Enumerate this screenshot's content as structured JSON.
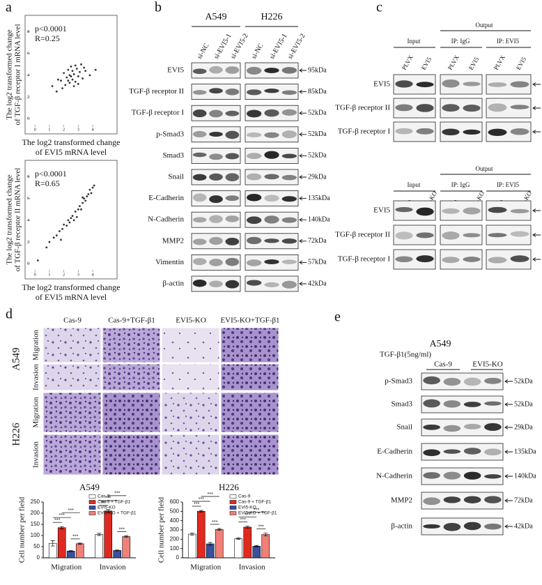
{
  "figure": {
    "panel_labels": [
      "a",
      "b",
      "c",
      "d",
      "e"
    ],
    "b": {
      "cell_lines": [
        "A549",
        "H226"
      ],
      "lanes": [
        "si-NC",
        "si-EVI5-1",
        "si-EVI5-2",
        "si-NC",
        "si-EVI5-1",
        "si-EVI5-2"
      ],
      "rows": [
        {
          "label": "EVI5",
          "size": "95kDa"
        },
        {
          "label": "TGF-β receptor II",
          "size": "85kDa"
        },
        {
          "label": "TGF-β receptor I",
          "size": "52kDa"
        },
        {
          "label": "p-Smad3",
          "size": "52kDa"
        },
        {
          "label": "Smad3",
          "size": "52kDa"
        },
        {
          "label": "Snail",
          "size": "29kDa"
        },
        {
          "label": "E-Cadherin",
          "size": "135kDa"
        },
        {
          "label": "N-Cadherin",
          "size": "140kDa"
        },
        {
          "label": "MMP2",
          "size": "72kDa"
        },
        {
          "label": "Vimentin",
          "size": "57kDa"
        },
        {
          "label": "β-actin",
          "size": "42kDa"
        }
      ]
    },
    "c": {
      "top": {
        "output": "Output",
        "groups": [
          "Input",
          "IP: IgG",
          "IP: EVI5"
        ],
        "lanes": [
          "PLVX",
          "EVI5",
          "PLVX",
          "EVI5",
          "PLVX",
          "EVI5"
        ],
        "rows": [
          "EVI5",
          "TGF-β receptor II",
          "TGF-β receptor I"
        ]
      },
      "bottom": {
        "output": "Output",
        "groups": [
          "Input",
          "IP: IgG",
          "IP: EVI5"
        ],
        "lanes": [
          "Cas-9",
          "EVI5-KO",
          "Cas-9",
          "EVI5-KO",
          "Cas-9",
          "EVI5-KO"
        ],
        "rows": [
          "EVI5",
          "TGF-β receptor II",
          "TGF-β receptor I"
        ]
      }
    },
    "d": {
      "conditions": [
        "Cas-9",
        "Cas-9+TGF-β1",
        "EVI5-KO",
        "EVI5-KO+TGF-β1"
      ],
      "cell_lines": [
        "A549",
        "H226"
      ],
      "assays": [
        "Migration",
        "Invasion",
        "Migration",
        "Invasion"
      ]
    },
    "e": {
      "cell_line": "A549",
      "treatment": "TGF-β1(5ng/ml)",
      "groups": [
        "Cas-9",
        "EVI5-KO"
      ],
      "signs": [
        "-",
        "+",
        "-",
        "+"
      ],
      "rows": [
        {
          "label": "p-Smad3",
          "size": "52kDa"
        },
        {
          "label": "Smad3",
          "size": "52kDa"
        },
        {
          "label": "Snail",
          "size": "29kDa"
        },
        {
          "label": "E-Cadherin",
          "size": "135kDa"
        },
        {
          "label": "N-Cadherin",
          "size": "140kDa"
        },
        {
          "label": "MMP2",
          "size": "72kDa"
        },
        {
          "label": "β-actin",
          "size": "42kDa"
        }
      ]
    }
  },
  "chart_data": [
    {
      "type": "scatter",
      "annotations": [
        "p<0.0001",
        "R=0.25"
      ],
      "x_label": [
        "The log2 transformed change",
        "of EVI5 mRNA level"
      ],
      "y_label": [
        "The log2 transformed change",
        "of TGF-β receptor I mRNA level"
      ],
      "xlim": [
        -0.3,
        5.3
      ],
      "ylim": [
        -0.5,
        9
      ],
      "xticks": [
        0,
        1,
        2,
        3,
        4
      ],
      "yticks": [
        0,
        2,
        4,
        6,
        8
      ],
      "color": "#333333",
      "x": [
        1.2,
        1.5,
        1.8,
        2.0,
        2.1,
        2.2,
        2.3,
        2.4,
        2.5,
        2.5,
        2.6,
        2.7,
        2.8,
        2.9,
        3.0,
        3.1,
        3.2,
        3.3,
        3.5,
        3.8,
        1.9,
        2.3,
        2.6,
        2.8,
        3.0,
        2.4,
        2.7,
        3.4,
        1.6,
        4.2
      ],
      "y": [
        3.0,
        2.5,
        3.5,
        4.2,
        3.1,
        3.8,
        4.5,
        3.3,
        3.9,
        4.8,
        3.6,
        4.1,
        3.4,
        4.6,
        3.9,
        4.3,
        5.0,
        3.7,
        4.4,
        4.0,
        2.8,
        3.5,
        4.4,
        4.9,
        3.2,
        4.0,
        3.0,
        4.7,
        3.6,
        4.5
      ]
    },
    {
      "type": "scatter",
      "annotations": [
        "p<0.0001",
        "R=0.65"
      ],
      "x_label": [
        "The log2 transformed change",
        "of EVI5 mRNA level"
      ],
      "y_label": [
        "The log2 transformed change",
        "of TGF-β receptor II mRNA level"
      ],
      "xlim": [
        -0.3,
        5.3
      ],
      "ylim": [
        -0.5,
        9
      ],
      "xticks": [
        0,
        1,
        2,
        3,
        4
      ],
      "yticks": [
        0,
        2,
        4,
        6,
        8
      ],
      "color": "#333333",
      "x": [
        0.8,
        1.0,
        1.3,
        1.5,
        1.7,
        1.9,
        2.0,
        2.2,
        2.3,
        2.5,
        2.6,
        2.7,
        2.8,
        3.0,
        3.1,
        3.2,
        3.3,
        3.4,
        3.5,
        3.6,
        3.7,
        3.8,
        3.9,
        4.0,
        4.1,
        1.8,
        2.4,
        2.9,
        3.3,
        0.2
      ],
      "y": [
        1.5,
        2.0,
        2.4,
        2.6,
        3.0,
        3.2,
        3.6,
        3.5,
        4.0,
        4.2,
        4.4,
        4.0,
        4.8,
        5.0,
        5.3,
        5.0,
        5.6,
        6.0,
        5.8,
        6.2,
        6.4,
        6.8,
        6.5,
        7.0,
        7.2,
        2.2,
        3.8,
        4.3,
        6.1,
        0.3
      ]
    },
    {
      "type": "bar",
      "title": "A549",
      "y_label": "Cell number per field",
      "categories": [
        "Migration",
        "Invasion"
      ],
      "ylim": [
        0,
        250
      ],
      "yticks": [
        0,
        50,
        100,
        150,
        200,
        250
      ],
      "series": [
        {
          "name": "Cas-9",
          "color": "#ffffff",
          "values": [
            65,
            105
          ],
          "errors": [
            12,
            5
          ]
        },
        {
          "name": "Cas-9 + TGF-β1",
          "color": "#e0291f",
          "values": [
            135,
            210
          ],
          "errors": [
            5,
            6
          ]
        },
        {
          "name": "EVI5-KO",
          "color": "#3a4f9e",
          "values": [
            30,
            33
          ],
          "errors": [
            2,
            2
          ]
        },
        {
          "name": "EVI5-KO + TGF-β1",
          "color": "#f08078",
          "values": [
            63,
            95
          ],
          "errors": [
            3,
            3
          ]
        }
      ],
      "significance": [
        "***",
        "***",
        "***",
        "***",
        "***",
        "***",
        "***",
        "***"
      ]
    },
    {
      "type": "bar",
      "title": "H226",
      "y_label": "Cell number per field",
      "categories": [
        "Migration",
        "Invasion"
      ],
      "ylim": [
        0,
        600
      ],
      "yticks": [
        0,
        100,
        200,
        300,
        400,
        500,
        600
      ],
      "series": [
        {
          "name": "Cas-9",
          "color": "#ffffff",
          "values": [
            255,
            205
          ],
          "errors": [
            10,
            8
          ]
        },
        {
          "name": "Cas-9 + TGF-β1",
          "color": "#e0291f",
          "values": [
            500,
            330
          ],
          "errors": [
            10,
            10
          ]
        },
        {
          "name": "EVI5-KO",
          "color": "#3a4f9e",
          "values": [
            150,
            125
          ],
          "errors": [
            15,
            8
          ]
        },
        {
          "name": "EVI5-KO + TGF-β1",
          "color": "#f08078",
          "values": [
            305,
            250
          ],
          "errors": [
            10,
            15
          ]
        }
      ],
      "significance": [
        "***",
        "***",
        "***",
        "***",
        "***",
        "***",
        "***",
        "***"
      ]
    }
  ]
}
